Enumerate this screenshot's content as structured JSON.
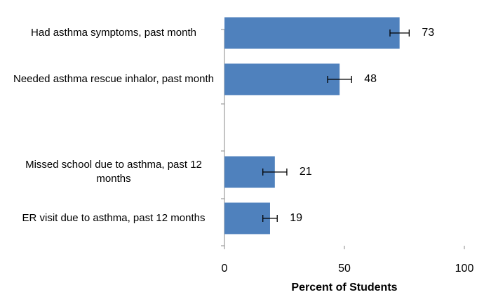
{
  "chart_data": {
    "type": "bar",
    "orientation": "horizontal",
    "categories": [
      "Had asthma symptoms, past month",
      "Needed asthma rescue inhalor, past month",
      null,
      "Missed school due to asthma, past 12 months",
      "ER visit due to asthma, past 12 months"
    ],
    "values": [
      73,
      48,
      null,
      21,
      19
    ],
    "errors": [
      4,
      5,
      null,
      5,
      3
    ],
    "color": "#4f81bd",
    "xlabel": "Percent of Students",
    "xlim": [
      0,
      100
    ],
    "xticks": [
      0,
      50,
      100
    ],
    "grid": false
  }
}
